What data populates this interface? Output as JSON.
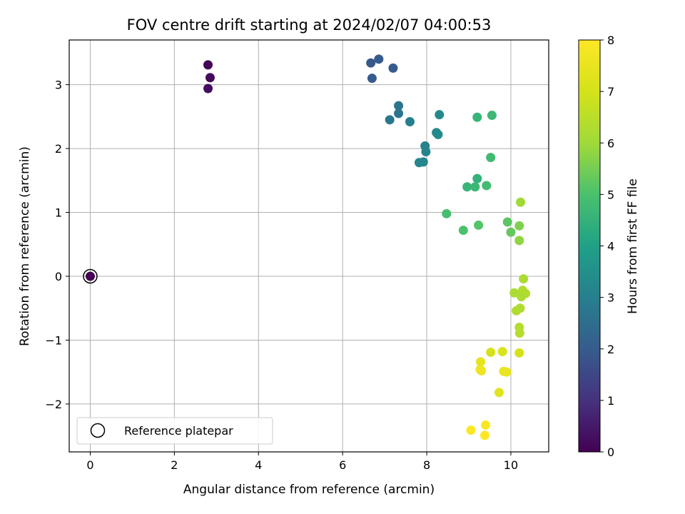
{
  "chart_data": {
    "type": "scatter",
    "title": "FOV centre drift starting at 2024/02/07 04:00:53",
    "xlabel": "Angular distance from reference (arcmin)",
    "ylabel": "Rotation from reference (arcmin)",
    "xlim": [
      -0.5,
      10.9
    ],
    "ylim": [
      -2.75,
      3.7
    ],
    "xticks": [
      0,
      2,
      4,
      6,
      8,
      10
    ],
    "yticks": [
      -2,
      -1,
      0,
      1,
      2,
      3
    ],
    "grid": true,
    "legend": {
      "placement": "lower-left",
      "entries": [
        "Reference platepar"
      ]
    },
    "reference_point": {
      "x": 0,
      "y": 0
    },
    "colorbar": {
      "label": "Hours from first FF file",
      "range": [
        0,
        8
      ],
      "ticks": [
        0,
        1,
        2,
        3,
        4,
        5,
        6,
        7,
        8
      ],
      "colormap": "viridis"
    },
    "points": [
      {
        "x": 0.0,
        "y": 0.0,
        "c": 0.0
      },
      {
        "x": 2.8,
        "y": 3.31,
        "c": 0.1
      },
      {
        "x": 2.85,
        "y": 3.11,
        "c": 0.2
      },
      {
        "x": 2.8,
        "y": 2.94,
        "c": 0.25
      },
      {
        "x": 6.67,
        "y": 3.34,
        "c": 1.9
      },
      {
        "x": 6.86,
        "y": 3.4,
        "c": 1.95
      },
      {
        "x": 7.2,
        "y": 3.26,
        "c": 2.0
      },
      {
        "x": 6.7,
        "y": 3.1,
        "c": 2.0
      },
      {
        "x": 7.33,
        "y": 2.67,
        "c": 2.7
      },
      {
        "x": 7.33,
        "y": 2.55,
        "c": 2.7
      },
      {
        "x": 7.12,
        "y": 2.45,
        "c": 2.75
      },
      {
        "x": 7.6,
        "y": 2.42,
        "c": 3.0
      },
      {
        "x": 8.3,
        "y": 2.53,
        "c": 3.3
      },
      {
        "x": 8.23,
        "y": 2.25,
        "c": 3.3
      },
      {
        "x": 8.27,
        "y": 2.22,
        "c": 3.35
      },
      {
        "x": 7.96,
        "y": 2.04,
        "c": 3.1
      },
      {
        "x": 7.98,
        "y": 1.95,
        "c": 3.15
      },
      {
        "x": 7.82,
        "y": 1.78,
        "c": 3.2
      },
      {
        "x": 7.92,
        "y": 1.79,
        "c": 3.2
      },
      {
        "x": 9.2,
        "y": 2.49,
        "c": 4.6
      },
      {
        "x": 9.55,
        "y": 2.52,
        "c": 4.7
      },
      {
        "x": 9.52,
        "y": 1.86,
        "c": 4.8
      },
      {
        "x": 9.2,
        "y": 1.53,
        "c": 4.5
      },
      {
        "x": 8.96,
        "y": 1.4,
        "c": 4.6
      },
      {
        "x": 9.15,
        "y": 1.4,
        "c": 4.7
      },
      {
        "x": 9.42,
        "y": 1.42,
        "c": 4.8
      },
      {
        "x": 8.47,
        "y": 0.98,
        "c": 4.9
      },
      {
        "x": 8.87,
        "y": 0.72,
        "c": 5.0
      },
      {
        "x": 9.23,
        "y": 0.8,
        "c": 5.1
      },
      {
        "x": 9.92,
        "y": 0.85,
        "c": 5.2
      },
      {
        "x": 10.0,
        "y": 0.69,
        "c": 5.3
      },
      {
        "x": 10.2,
        "y": 0.79,
        "c": 5.6
      },
      {
        "x": 10.2,
        "y": 0.56,
        "c": 5.8
      },
      {
        "x": 10.23,
        "y": 1.16,
        "c": 6.0
      },
      {
        "x": 10.3,
        "y": -0.04,
        "c": 6.2
      },
      {
        "x": 10.08,
        "y": -0.26,
        "c": 6.2
      },
      {
        "x": 10.28,
        "y": -0.22,
        "c": 6.3
      },
      {
        "x": 10.35,
        "y": -0.27,
        "c": 6.3
      },
      {
        "x": 10.25,
        "y": -0.32,
        "c": 6.2
      },
      {
        "x": 10.13,
        "y": -0.54,
        "c": 6.3
      },
      {
        "x": 10.22,
        "y": -0.5,
        "c": 6.3
      },
      {
        "x": 10.2,
        "y": -0.8,
        "c": 6.4
      },
      {
        "x": 10.21,
        "y": -0.89,
        "c": 6.4
      },
      {
        "x": 9.52,
        "y": -1.19,
        "c": 7.0
      },
      {
        "x": 9.8,
        "y": -1.18,
        "c": 7.1
      },
      {
        "x": 10.2,
        "y": -1.2,
        "c": 7.0
      },
      {
        "x": 9.28,
        "y": -1.34,
        "c": 7.4
      },
      {
        "x": 9.27,
        "y": -1.46,
        "c": 7.6
      },
      {
        "x": 9.3,
        "y": -1.48,
        "c": 7.6
      },
      {
        "x": 9.83,
        "y": -1.49,
        "c": 7.5
      },
      {
        "x": 9.9,
        "y": -1.5,
        "c": 7.5
      },
      {
        "x": 9.72,
        "y": -1.82,
        "c": 7.3
      },
      {
        "x": 9.4,
        "y": -2.33,
        "c": 7.9
      },
      {
        "x": 9.05,
        "y": -2.41,
        "c": 7.95
      },
      {
        "x": 9.38,
        "y": -2.49,
        "c": 8.0
      }
    ]
  }
}
